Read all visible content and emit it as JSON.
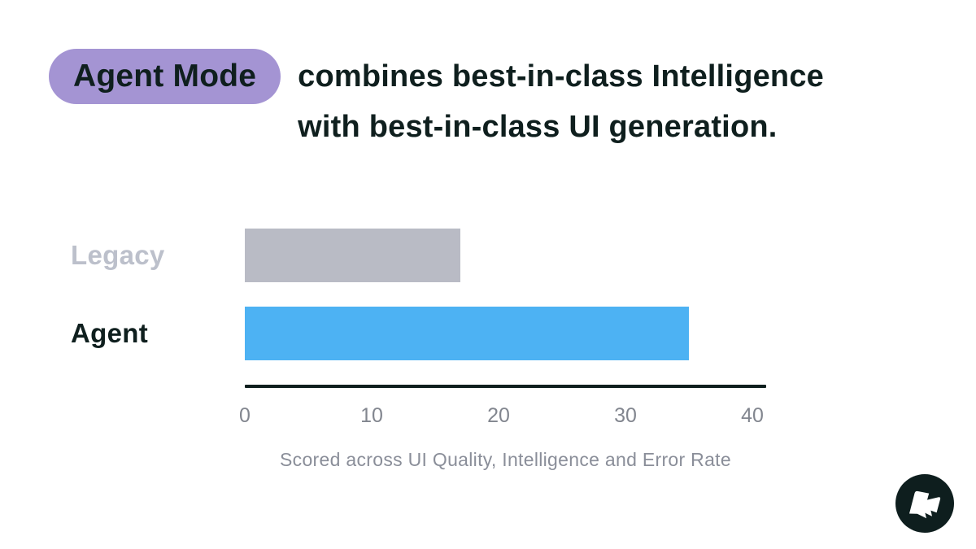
{
  "header": {
    "badge": "Agent Mode",
    "title_line1": "combines best-in-class Intelligence",
    "title_line2": "with best-in-class UI generation."
  },
  "chart_data": {
    "type": "bar",
    "orientation": "horizontal",
    "categories": [
      "Legacy",
      "Agent"
    ],
    "values": [
      17,
      35
    ],
    "xlim": [
      0,
      40
    ],
    "x_ticks": [
      0,
      10,
      20,
      30,
      40
    ],
    "xlabel": "Scored across UI Quality, Intelligence and Error Rate",
    "bar_colors": [
      "#b9bbc5",
      "#4db2f3"
    ],
    "category_label_colors": [
      "#bcc0cb",
      "#0f1f1e"
    ],
    "axis_color": "#0f1f1e",
    "grid": false,
    "legend": false
  },
  "colors": {
    "background": "#ffffff",
    "badge_bg": "#a494d3",
    "text_dark": "#0f1f1e",
    "tick_gray": "#82868f",
    "caption_gray": "#8a8e99",
    "logo_bg": "#0e1e1e"
  },
  "logo": {
    "icon": "flag-bolt-logo"
  }
}
